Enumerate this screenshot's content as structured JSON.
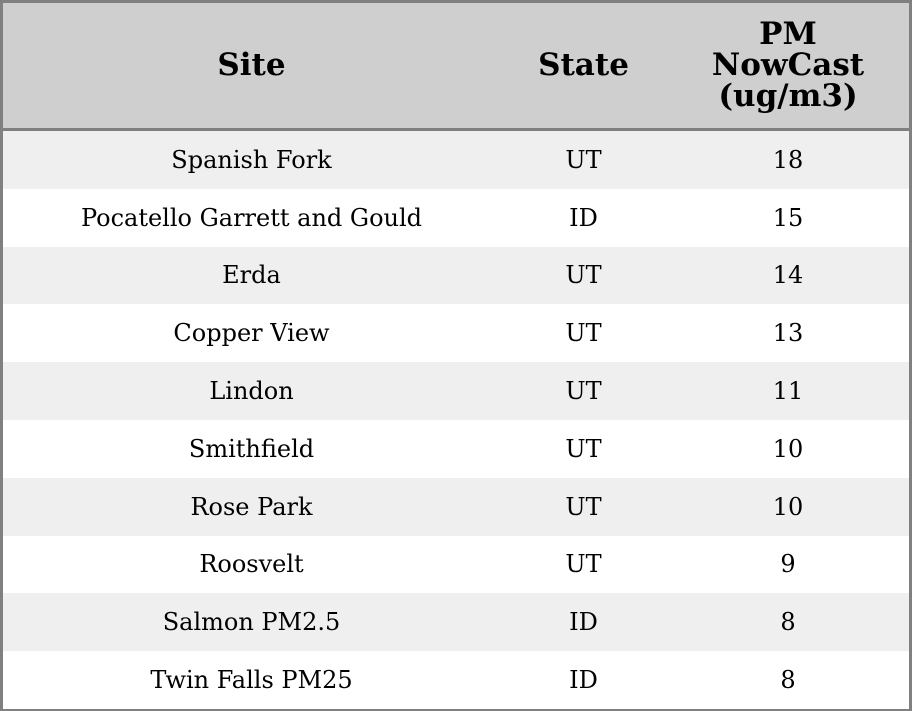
{
  "chart_data": {
    "type": "table",
    "columns": [
      "Site",
      "State",
      "PM NowCast (ug/m3)"
    ],
    "header_lines": {
      "pm": [
        "PM",
        "NowCast",
        "(ug/m3)"
      ]
    },
    "rows": [
      [
        "Spanish Fork",
        "UT",
        "18"
      ],
      [
        "Pocatello Garrett and Gould",
        "ID",
        "15"
      ],
      [
        "Erda",
        "UT",
        "14"
      ],
      [
        "Copper View",
        "UT",
        "13"
      ],
      [
        "Lindon",
        "UT",
        "11"
      ],
      [
        "Smithfield",
        "UT",
        "10"
      ],
      [
        "Rose Park",
        "UT",
        "10"
      ],
      [
        "Roosvelt",
        "UT",
        "9"
      ],
      [
        "Salmon PM2.5",
        "ID",
        "8"
      ],
      [
        "Twin Falls PM25",
        "ID",
        "8"
      ]
    ],
    "colors": {
      "header_bg": "#cfcfcf",
      "row_odd": "#efefef",
      "row_even": "#ffffff",
      "border": "#808080"
    }
  }
}
